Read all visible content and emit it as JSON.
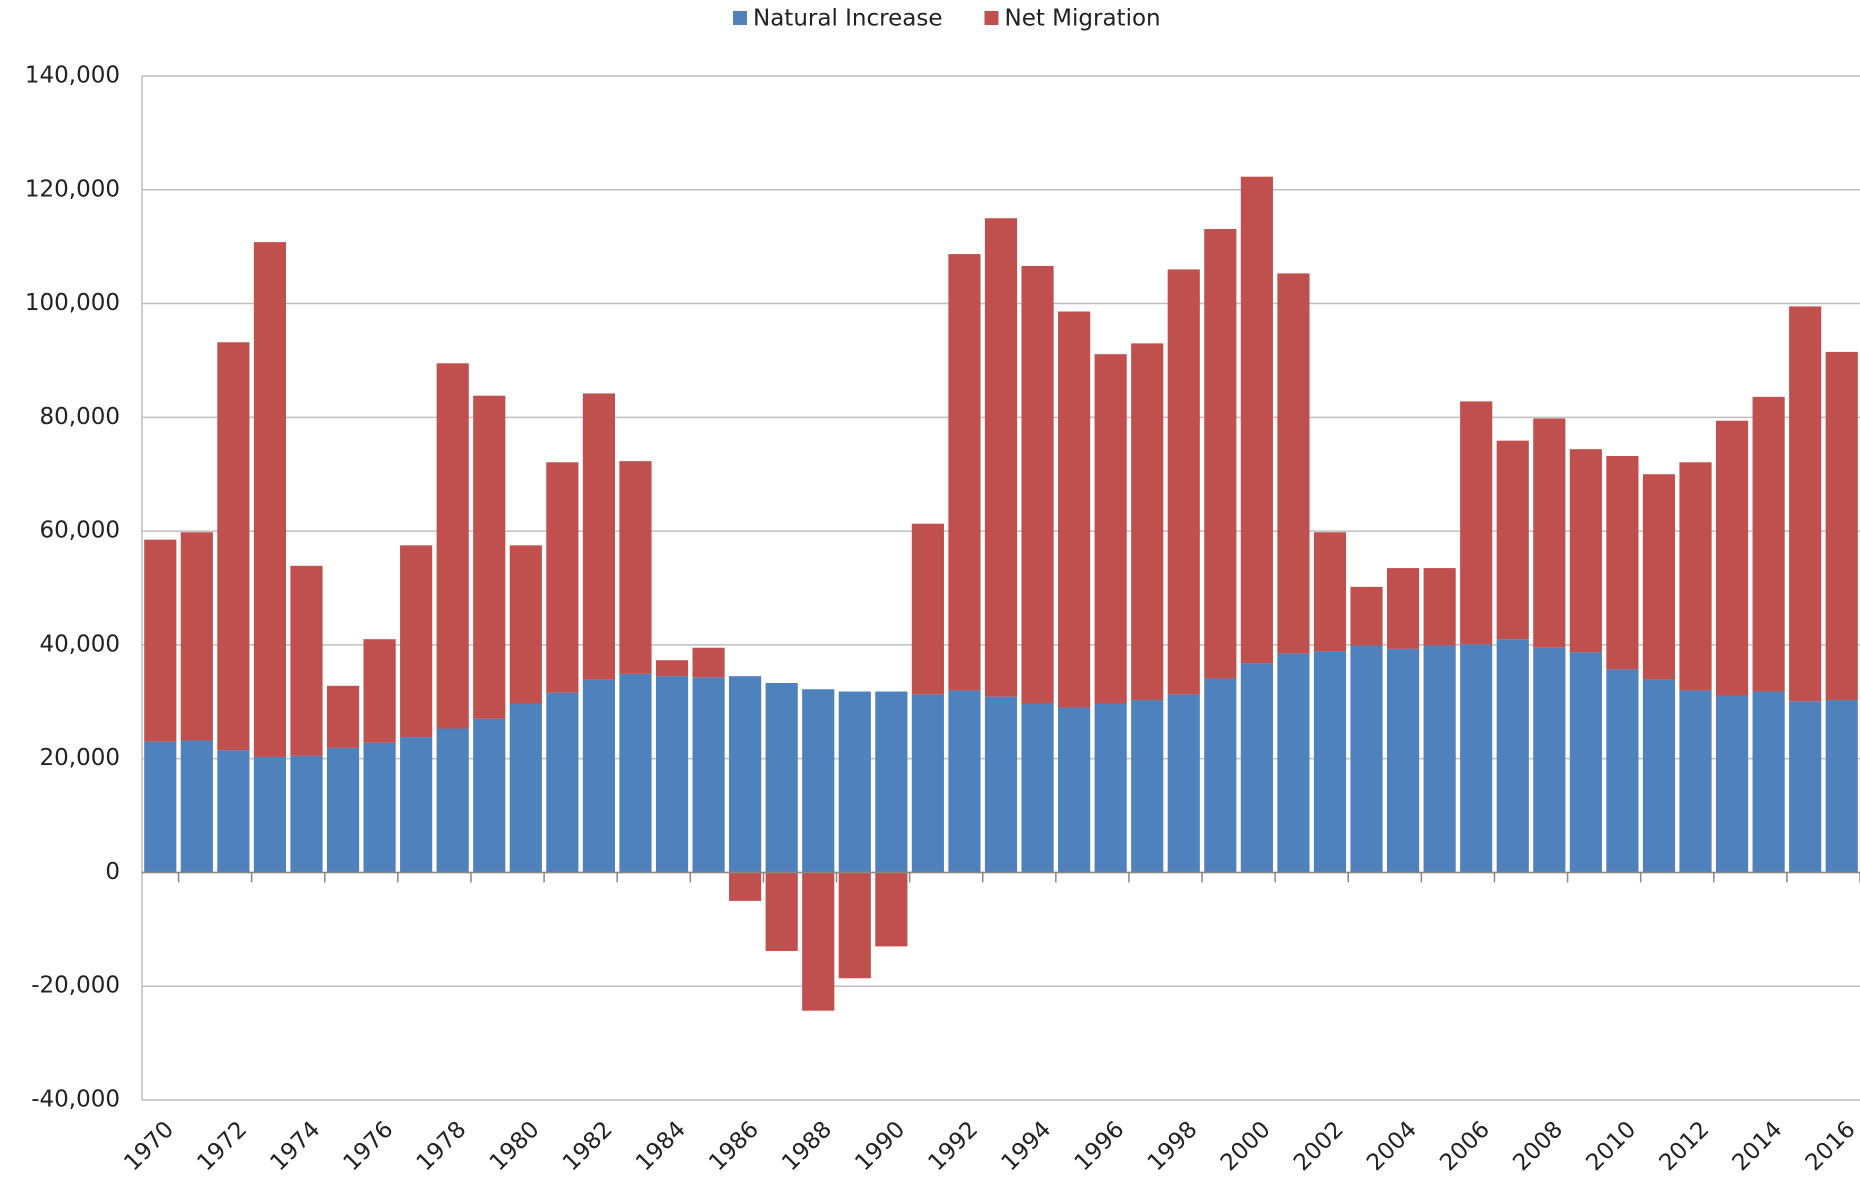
{
  "chart_data": {
    "type": "stacked_bar",
    "categories": [
      "1970",
      null,
      "1972",
      null,
      "1974",
      null,
      "1976",
      null,
      "1978",
      null,
      "1980",
      null,
      "1982",
      null,
      "1984",
      null,
      "1986",
      null,
      "1988",
      null,
      "1990",
      null,
      "1992",
      null,
      "1994",
      null,
      "1996",
      null,
      "1998",
      null,
      "2000",
      null,
      "2002",
      null,
      "2004",
      null,
      "2006",
      null,
      "2008",
      null,
      "2010",
      null,
      "2012",
      null,
      "2014",
      null,
      "2016"
    ],
    "series": [
      {
        "name": "Natural Increase",
        "color": "#4f81bd",
        "values": [
          23000,
          23200,
          21500,
          20300,
          20500,
          21900,
          22800,
          23800,
          25300,
          27000,
          29700,
          31600,
          33900,
          34900,
          34500,
          34300,
          34500,
          33300,
          32200,
          31800,
          31800,
          31300,
          32000,
          30900,
          29700,
          29000,
          29700,
          30300,
          31300,
          34100,
          36800,
          38500,
          38900,
          39900,
          39300,
          39900,
          40100,
          41000,
          39500,
          38700,
          35700,
          33900,
          32000,
          31100,
          31800,
          30100,
          30300
        ]
      },
      {
        "name": "Net Migration",
        "color": "#c0504d",
        "values": [
          35500,
          36600,
          71700,
          90500,
          33400,
          10900,
          18200,
          33700,
          64200,
          56800,
          27800,
          40500,
          50300,
          37400,
          2800,
          5200,
          -5000,
          -13800,
          -24300,
          -18600,
          -13000,
          30000,
          76700,
          84100,
          76900,
          69600,
          61400,
          62700,
          74700,
          79000,
          85500,
          66800,
          20900,
          10300,
          14200,
          13600,
          42700,
          34900,
          40300,
          35700,
          37500,
          36100,
          40100,
          48300,
          51800,
          69400,
          61200
        ]
      }
    ],
    "ylim": [
      -40000,
      140000
    ],
    "yticks": [
      {
        "value": -40000,
        "label": "-40,000"
      },
      {
        "value": -20000,
        "label": "-20,000"
      },
      0,
      {
        "value": 20000,
        "label": "20,000"
      },
      {
        "value": 40000,
        "label": "40,000"
      },
      {
        "value": 60000,
        "label": "60,000"
      },
      {
        "value": 80000,
        "label": "80,000"
      },
      {
        "value": 100000,
        "label": "100,000"
      },
      {
        "value": 120000,
        "label": "120,000"
      },
      {
        "value": 140000,
        "label": "140,000"
      }
    ],
    "grid": true,
    "legend": "top"
  }
}
